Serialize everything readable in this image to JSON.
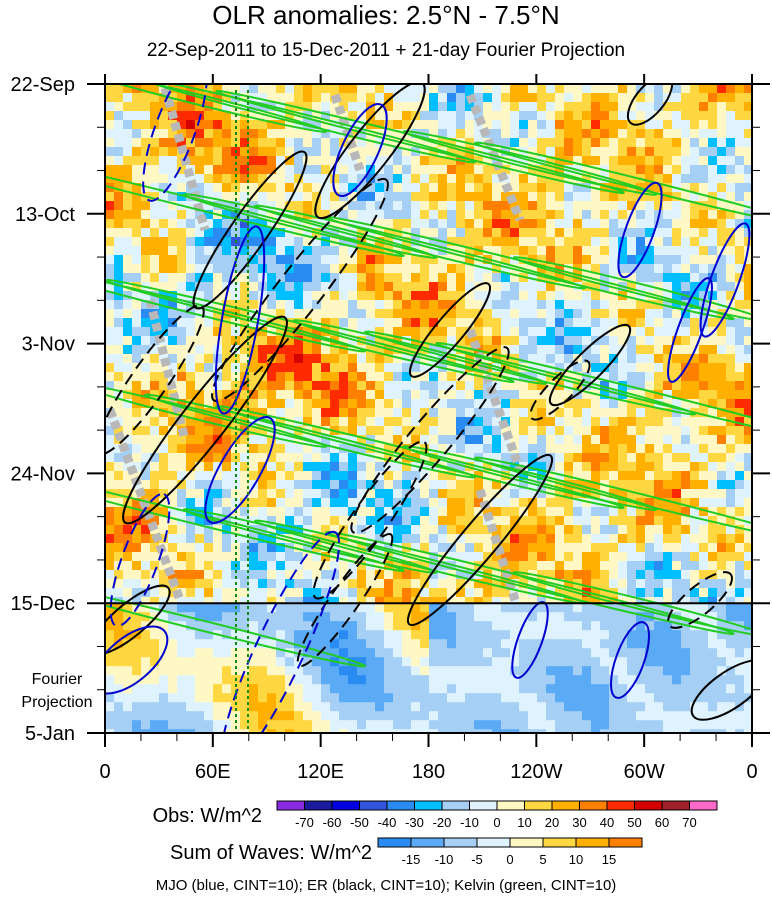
{
  "title": "OLR anomalies: 2.5°N - 7.5°N",
  "subtitle": "22-Sep-2011 to 15-Dec-2011 + 21-day Fourier Projection",
  "chart_data": {
    "type": "heatmap",
    "xlabel": "",
    "ylabel": "",
    "x_ticks": [
      "0",
      "60E",
      "120E",
      "180",
      "120W",
      "60W",
      "0"
    ],
    "y_ticks": [
      "22-Sep",
      "13-Oct",
      "3-Nov",
      "24-Nov",
      "15-Dec",
      "5-Jan"
    ],
    "y_side_label": [
      "Fourier",
      "Projection"
    ],
    "xlim": [
      0,
      360
    ],
    "ylim_days": [
      0,
      105
    ],
    "projection_start_day": 84,
    "obs_colorbar": {
      "label": "Obs: W/m^2",
      "levels": [
        "-70",
        "-60",
        "-50",
        "-40",
        "-30",
        "-20",
        "-10",
        "0",
        "10",
        "20",
        "30",
        "40",
        "50",
        "60",
        "70"
      ],
      "colors": [
        "#8a2be2",
        "#1a1a9c",
        "#0000e0",
        "#3355dd",
        "#2a8cf2",
        "#00bfff",
        "#a6cff5",
        "#dff3ff",
        "#fff8c4",
        "#ffd740",
        "#ffb000",
        "#ff7f00",
        "#ff2a00",
        "#d40000",
        "#a0202a",
        "#ff69c8"
      ]
    },
    "waves_colorbar": {
      "label": "Sum of Waves: W/m^2",
      "levels": [
        "-15",
        "-10",
        "-5",
        "0",
        "5",
        "10",
        "15"
      ],
      "colors": [
        "#2a8cf2",
        "#5aaaf5",
        "#a6cff5",
        "#dff3ff",
        "#fff8c4",
        "#ffd740",
        "#ffb000",
        "#ff7f00"
      ]
    },
    "series": [
      {
        "name": "MJO",
        "color": "#0000d0",
        "cint": 10
      },
      {
        "name": "ER",
        "color": "#000000",
        "cint": 10
      },
      {
        "name": "Kelvin",
        "color": "#22cc22",
        "cint": 10
      }
    ],
    "grid": false,
    "legend_note": "MJO (blue, CINT=10); ER (black, CINT=10); Kelvin (green, CINT=10)"
  }
}
